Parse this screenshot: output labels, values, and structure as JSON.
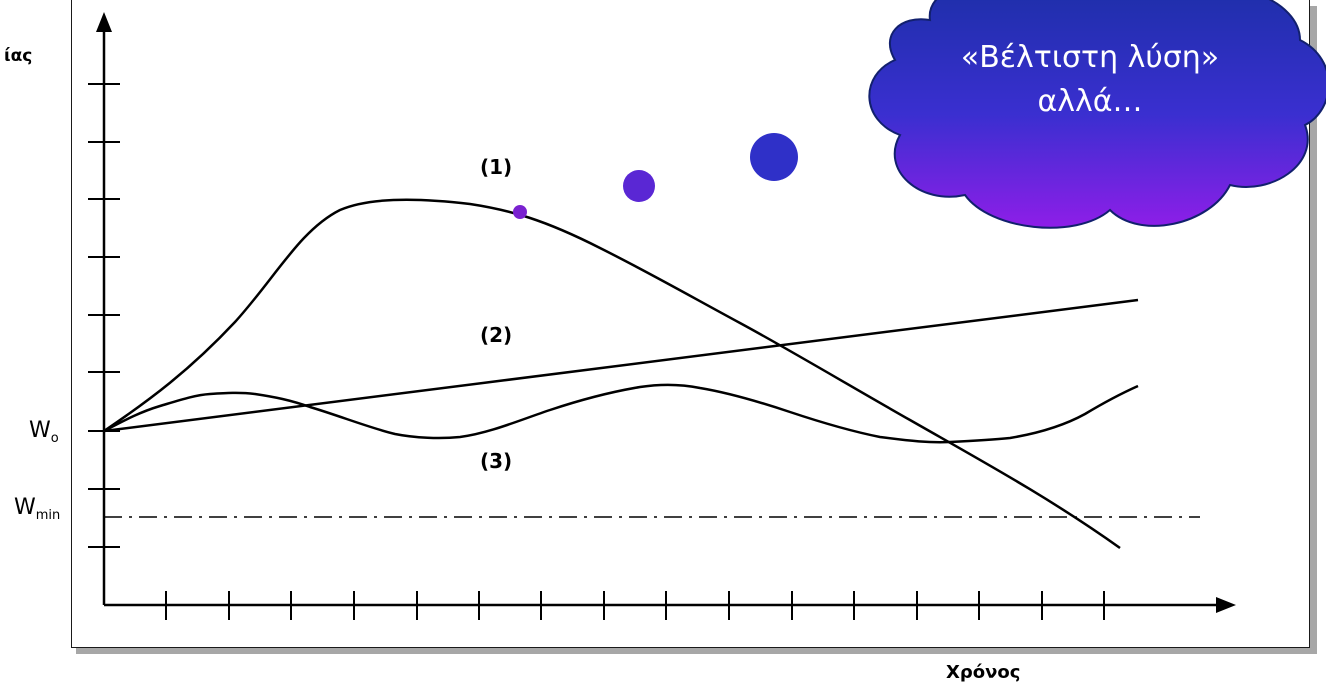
{
  "chart": {
    "y_axis_label_fragment": "ίας",
    "x_axis_label": "Χρόνος",
    "w0_base": "W",
    "w0_sub": "o",
    "wmin_base": "W",
    "wmin_sub": "min",
    "curve_labels": [
      "(1)",
      "(2)",
      "(3)"
    ]
  },
  "callout": {
    "line1": "«Βέλτιστη λύση»",
    "line2": "αλλά…"
  },
  "colors": {
    "cloud_top": "#1b2fa6",
    "cloud_bottom": "#8e1ee8",
    "cloud_outline": "#12206e",
    "bubble_small": "#7a22d0",
    "bubble_mid": "#5a27d4",
    "bubble_large": "#2f30c8",
    "frame_shadow": "#a7a7a7"
  }
}
